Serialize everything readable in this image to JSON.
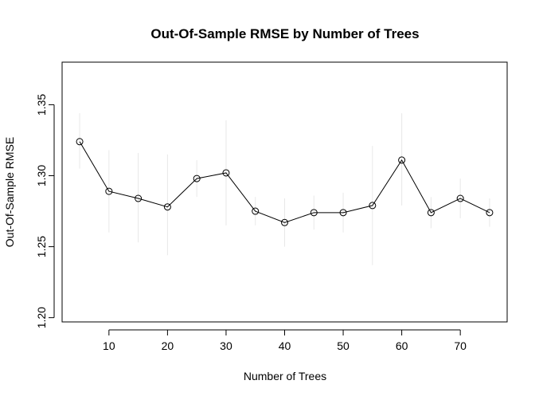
{
  "chart_data": {
    "type": "line",
    "title": "Out-Of-Sample RMSE by Number of Trees",
    "xlabel": "Number of Trees",
    "ylabel": "Out-Of-Sample RMSE",
    "x": [
      5,
      10,
      15,
      20,
      25,
      30,
      35,
      40,
      45,
      50,
      55,
      60,
      65,
      70,
      75
    ],
    "series": [
      {
        "values": [
          1.324,
          1.289,
          1.284,
          1.278,
          1.298,
          1.302,
          1.275,
          1.267,
          1.274,
          1.274,
          1.279,
          1.311,
          1.274,
          1.284,
          1.274
        ]
      }
    ],
    "error_low": [
      1.305,
      1.26,
      1.253,
      1.244,
      1.285,
      1.265,
      1.265,
      1.25,
      1.262,
      1.26,
      1.237,
      1.279,
      1.263,
      1.27,
      1.264
    ],
    "error_high": [
      1.344,
      1.318,
      1.316,
      1.315,
      1.311,
      1.339,
      1.285,
      1.284,
      1.286,
      1.288,
      1.321,
      1.344,
      1.285,
      1.298,
      1.284
    ],
    "xlim": [
      2,
      78
    ],
    "ylim": [
      1.197,
      1.38
    ],
    "xticks": [
      10,
      20,
      30,
      40,
      50,
      60,
      70
    ],
    "yticks": [
      1.2,
      1.25,
      1.3,
      1.35
    ],
    "ytick_labels": [
      "1.20",
      "1.25",
      "1.30",
      "1.35"
    ],
    "marker": "open-circle",
    "grid": false,
    "colors": {
      "line": "#000000",
      "marker": "#000000",
      "error_bar": "#e8e8e8"
    }
  }
}
